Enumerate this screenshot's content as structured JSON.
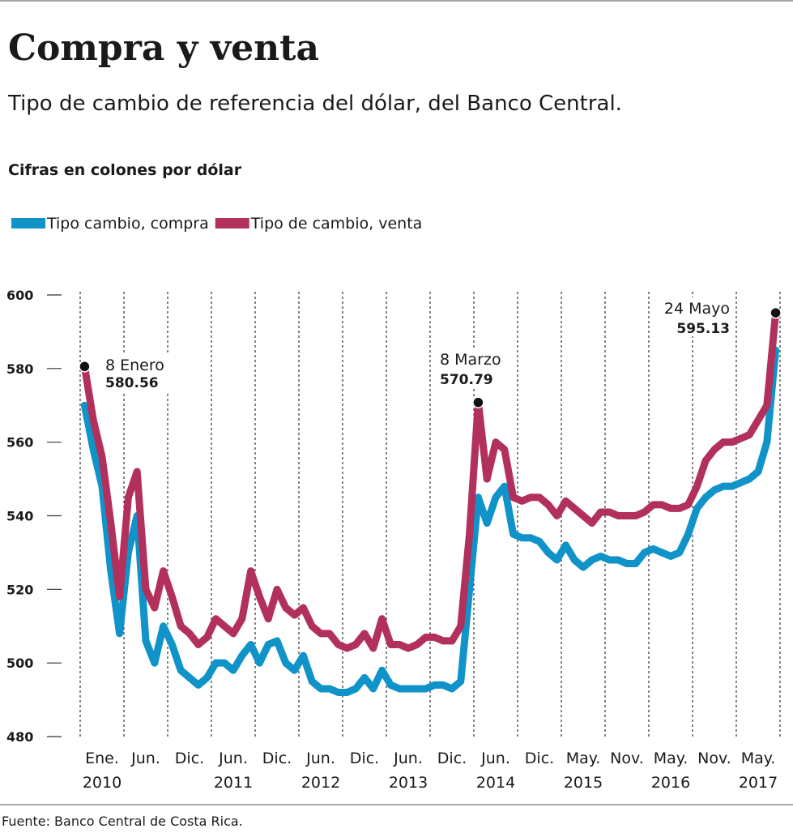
{
  "chart_data": {
    "type": "line",
    "title": "Compra y venta",
    "subtitle": "Tipo de cambio de referencia del dólar, del Banco Central.",
    "unit_label": "Cifras en colones por dólar",
    "source": "Fuente: Banco Central de Costa Rica.",
    "categories": [
      null,
      null,
      "Ene.",
      null,
      null,
      null,
      null,
      "Jun.",
      null,
      null,
      null,
      null,
      "Dic.",
      null,
      null,
      null,
      null,
      "Jun.",
      null,
      null,
      null,
      null,
      "Dic.",
      null,
      null,
      null,
      null,
      "Jun.",
      null,
      null,
      null,
      null,
      "Dic.",
      null,
      null,
      null,
      null,
      "Jun.",
      null,
      null,
      null,
      null,
      "Dic.",
      null,
      null,
      null,
      null,
      "Jun.",
      null,
      null,
      null,
      null,
      "Dic.",
      null,
      null,
      null,
      null,
      "May.",
      null,
      null,
      null,
      null,
      "Nov.",
      null,
      null,
      null,
      null,
      "May.",
      null,
      null,
      null,
      null,
      "Nov.",
      null,
      null,
      null,
      null,
      "May.",
      null,
      null
    ],
    "years": [
      null,
      null,
      "2010",
      null,
      null,
      null,
      null,
      null,
      null,
      null,
      null,
      null,
      null,
      null,
      null,
      null,
      null,
      "2011",
      null,
      null,
      null,
      null,
      null,
      null,
      null,
      null,
      null,
      "2012",
      null,
      null,
      null,
      null,
      null,
      null,
      null,
      null,
      null,
      "2013",
      null,
      null,
      null,
      null,
      null,
      null,
      null,
      null,
      null,
      "2014",
      null,
      null,
      null,
      null,
      null,
      null,
      null,
      null,
      null,
      "2015",
      null,
      null,
      null,
      null,
      null,
      null,
      null,
      null,
      null,
      "2016",
      null,
      null,
      null,
      null,
      null,
      null,
      null,
      null,
      null,
      "2017",
      null,
      null
    ],
    "series": [
      {
        "name": "Tipo cambio, compra",
        "color": "#0f93c8",
        "values": [
          570,
          558,
          548,
          525,
          508,
          530,
          540,
          506,
          500,
          510,
          505,
          498,
          496,
          494,
          496,
          500,
          500,
          498,
          502,
          505,
          500,
          505,
          506,
          500,
          498,
          502,
          495,
          493,
          493,
          492,
          492,
          493,
          496,
          493,
          498,
          494,
          493,
          493,
          493,
          493,
          494,
          494,
          493,
          495,
          520,
          545,
          538,
          545,
          548,
          535,
          534,
          534,
          533,
          530,
          528,
          532,
          528,
          526,
          528,
          529,
          528,
          528,
          527,
          527,
          530,
          531,
          530,
          529,
          530,
          535,
          542,
          545,
          547,
          548,
          548,
          549,
          550,
          552,
          560,
          585
        ]
      },
      {
        "name": "Tipo de cambio, venta",
        "color": "#b2305c",
        "values": [
          580.56,
          566,
          556,
          538,
          518,
          545,
          552,
          520,
          515,
          525,
          518,
          510,
          508,
          505,
          507,
          512,
          510,
          508,
          512,
          525,
          518,
          512,
          520,
          515,
          513,
          515,
          510,
          508,
          508,
          505,
          504,
          505,
          508,
          504,
          512,
          505,
          505,
          504,
          505,
          507,
          507,
          506,
          506,
          510,
          535,
          570.79,
          550,
          560,
          558,
          545,
          544,
          545,
          545,
          543,
          540,
          544,
          542,
          540,
          538,
          541,
          541,
          540,
          540,
          540,
          541,
          543,
          543,
          542,
          542,
          543,
          548,
          555,
          558,
          560,
          560,
          561,
          562,
          566,
          570,
          595.13
        ]
      }
    ],
    "annotations": [
      "8 Enero",
      "8 Marzo",
      "24 Mayo"
    ],
    "ylim": [
      480,
      600
    ],
    "yticks": [
      480,
      500,
      520,
      540,
      560,
      580,
      600
    ]
  }
}
